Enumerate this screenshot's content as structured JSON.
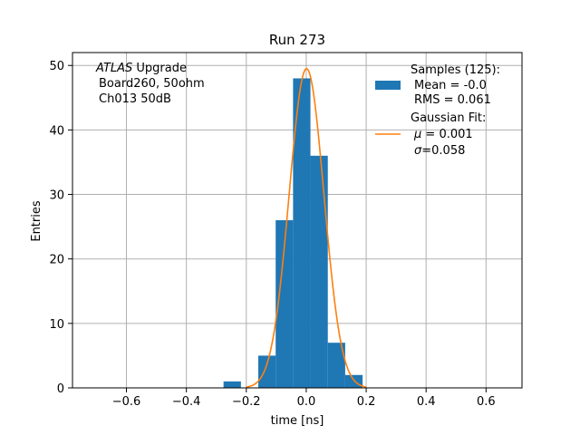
{
  "chart_data": {
    "type": "bar",
    "title": "Run 273",
    "xlabel": "time [ns]",
    "ylabel": "Entries",
    "xlim": [
      -0.78,
      0.72
    ],
    "ylim": [
      0,
      52
    ],
    "xticks": [
      -0.6,
      -0.4,
      -0.2,
      0.0,
      0.2,
      0.4,
      0.6
    ],
    "xtick_labels": [
      "−0.6",
      "−0.4",
      "−0.2",
      "0.0",
      "0.2",
      "0.4",
      "0.6"
    ],
    "yticks": [
      0,
      10,
      20,
      30,
      40,
      50
    ],
    "ytick_labels": [
      "0",
      "10",
      "20",
      "30",
      "40",
      "50"
    ],
    "grid": true,
    "legend_position": "top-right",
    "histogram": {
      "name": "Samples (125):",
      "color": "#1f77b4",
      "bin_width": 0.058,
      "bins": [
        {
          "x0": -0.276,
          "count": 1
        },
        {
          "x0": -0.16,
          "count": 5
        },
        {
          "x0": -0.102,
          "count": 26
        },
        {
          "x0": -0.044,
          "count": 48
        },
        {
          "x0": 0.014,
          "count": 36
        },
        {
          "x0": 0.072,
          "count": 7
        },
        {
          "x0": 0.13,
          "count": 2
        }
      ]
    },
    "fit": {
      "name": "Gaussian Fit:",
      "color": "#ff7f0e",
      "mu": 0.001,
      "sigma": 0.058,
      "amplitude": 49.5,
      "x_range": [
        -0.2,
        0.2
      ]
    },
    "legend": {
      "samples_title": "Samples (125):",
      "samples_mean": "Mean = -0.0",
      "samples_rms": "RMS = 0.061",
      "fit_title": "Gaussian Fit:",
      "fit_mu_symbol": "μ",
      "fit_mu_value": " = 0.001",
      "fit_sigma_symbol": "σ",
      "fit_sigma_value": "=0.058"
    },
    "annotations": {
      "experiment": "ATLAS",
      "experiment_suffix": " Upgrade",
      "board": "Board260, 50ohm",
      "channel": "Ch013 50dB"
    }
  }
}
